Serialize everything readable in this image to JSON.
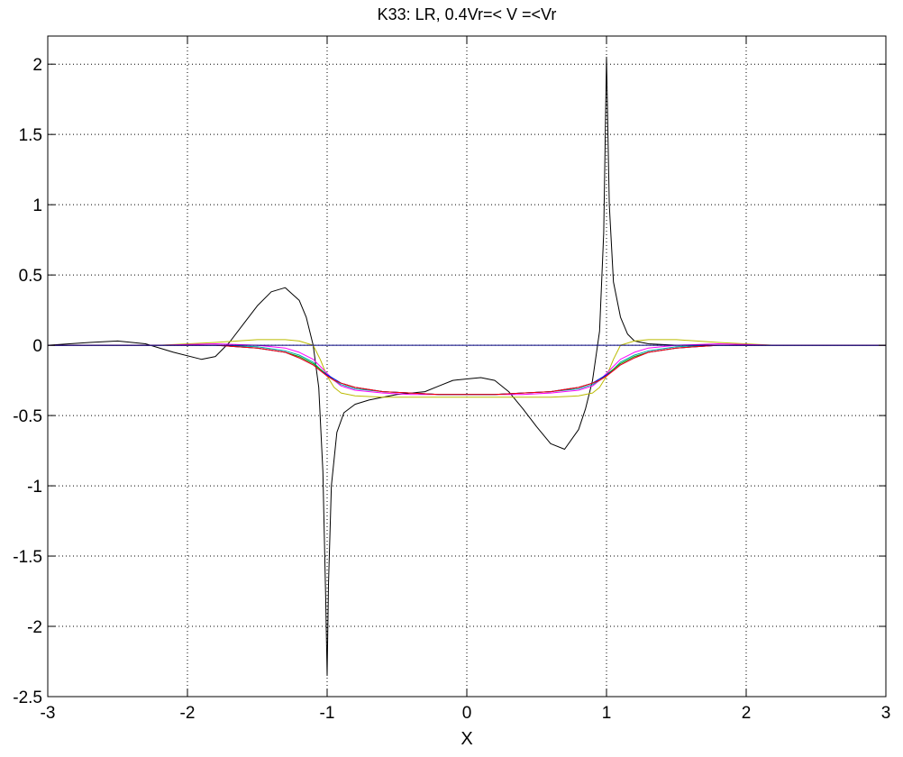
{
  "chart_data": {
    "type": "line",
    "title": "K33: LR, 0.4Vr=< V =<Vr",
    "xlabel": "X",
    "ylabel": "",
    "xlim": [
      -3,
      3
    ],
    "ylim": [
      -2.5,
      2.2
    ],
    "xticks": [
      "-3",
      "-2",
      "-1",
      "0",
      "1",
      "2",
      "3"
    ],
    "yticks": [
      "-2.5",
      "-2",
      "-1.5",
      "-1",
      "-0.5",
      "0",
      "0.5",
      "1",
      "1.5",
      "2"
    ],
    "grid": true,
    "legend": "none",
    "series": [
      {
        "color": "#000000",
        "x": [
          -3,
          -2.7,
          -2.5,
          -2.3,
          -2.1,
          -1.9,
          -1.8,
          -1.7,
          -1.6,
          -1.5,
          -1.4,
          -1.3,
          -1.2,
          -1.15,
          -1.1,
          -1.06,
          -1.03,
          -1.01,
          -1.0,
          -0.99,
          -0.97,
          -0.93,
          -0.88,
          -0.8,
          -0.7,
          -0.6,
          -0.5,
          -0.4,
          -0.3,
          -0.2,
          -0.1,
          0,
          0.1,
          0.2,
          0.3,
          0.4,
          0.5,
          0.6,
          0.7,
          0.8,
          0.85,
          0.9,
          0.95,
          0.98,
          1.0,
          1.02,
          1.05,
          1.1,
          1.15,
          1.2,
          1.3,
          1.5,
          2,
          2.5,
          3
        ],
        "y": [
          0,
          0.02,
          0.03,
          0.01,
          -0.05,
          -0.1,
          -0.08,
          0.02,
          0.15,
          0.28,
          0.38,
          0.41,
          0.32,
          0.2,
          0.0,
          -0.3,
          -0.9,
          -1.8,
          -2.35,
          -1.7,
          -1.0,
          -0.62,
          -0.48,
          -0.42,
          -0.39,
          -0.37,
          -0.35,
          -0.34,
          -0.33,
          -0.29,
          -0.25,
          -0.24,
          -0.23,
          -0.25,
          -0.33,
          -0.45,
          -0.58,
          -0.7,
          -0.74,
          -0.6,
          -0.45,
          -0.25,
          0.1,
          0.8,
          2.05,
          1.0,
          0.45,
          0.2,
          0.08,
          0.03,
          0.01,
          0.0,
          0.0,
          0.0,
          0.0
        ]
      },
      {
        "color": "#bbbb00",
        "x": [
          -3,
          -2.2,
          -1.8,
          -1.5,
          -1.3,
          -1.2,
          -1.1,
          -1.05,
          -1.0,
          -0.95,
          -0.9,
          -0.8,
          -0.6,
          -0.4,
          -0.2,
          0,
          0.2,
          0.4,
          0.6,
          0.8,
          0.9,
          0.95,
          1.0,
          1.05,
          1.1,
          1.2,
          1.3,
          1.5,
          1.8,
          2.2,
          3
        ],
        "y": [
          0,
          0.0,
          0.02,
          0.04,
          0.04,
          0.03,
          0.0,
          -0.1,
          -0.22,
          -0.3,
          -0.34,
          -0.36,
          -0.37,
          -0.37,
          -0.37,
          -0.37,
          -0.37,
          -0.37,
          -0.37,
          -0.36,
          -0.34,
          -0.3,
          -0.22,
          -0.1,
          0.0,
          0.03,
          0.04,
          0.04,
          0.02,
          0.0,
          0
        ]
      },
      {
        "color": "#ff00ff",
        "x": [
          -3,
          -2.2,
          -1.8,
          -1.5,
          -1.3,
          -1.2,
          -1.1,
          -1.05,
          -1.0,
          -0.95,
          -0.9,
          -0.8,
          -0.6,
          -0.4,
          -0.2,
          0,
          0.2,
          0.4,
          0.6,
          0.8,
          0.9,
          0.95,
          1.0,
          1.05,
          1.1,
          1.2,
          1.3,
          1.5,
          1.8,
          2.2,
          3
        ],
        "y": [
          0,
          0.0,
          0.01,
          0.0,
          -0.02,
          -0.05,
          -0.1,
          -0.15,
          -0.2,
          -0.25,
          -0.29,
          -0.32,
          -0.34,
          -0.35,
          -0.35,
          -0.35,
          -0.35,
          -0.35,
          -0.34,
          -0.32,
          -0.29,
          -0.25,
          -0.2,
          -0.15,
          -0.1,
          -0.05,
          -0.02,
          0.0,
          0.01,
          0.0,
          0
        ]
      },
      {
        "color": "#00aaaa",
        "x": [
          -3,
          -2.2,
          -1.8,
          -1.5,
          -1.3,
          -1.2,
          -1.1,
          -1.05,
          -1.0,
          -0.95,
          -0.9,
          -0.8,
          -0.6,
          -0.4,
          -0.2,
          0,
          0.2,
          0.4,
          0.6,
          0.8,
          0.9,
          0.95,
          1.0,
          1.05,
          1.1,
          1.2,
          1.3,
          1.5,
          1.8,
          2.2,
          3
        ],
        "y": [
          0,
          0.0,
          0.0,
          -0.01,
          -0.04,
          -0.07,
          -0.12,
          -0.17,
          -0.21,
          -0.25,
          -0.28,
          -0.31,
          -0.33,
          -0.34,
          -0.35,
          -0.35,
          -0.35,
          -0.34,
          -0.33,
          -0.31,
          -0.28,
          -0.25,
          -0.21,
          -0.17,
          -0.12,
          -0.07,
          -0.04,
          -0.01,
          0.0,
          0.0,
          0
        ]
      },
      {
        "color": "#00aa00",
        "x": [
          -3,
          -2.2,
          -1.8,
          -1.5,
          -1.3,
          -1.2,
          -1.1,
          -1.05,
          -1.0,
          -0.95,
          -0.9,
          -0.8,
          -0.6,
          -0.4,
          -0.2,
          0,
          0.2,
          0.4,
          0.6,
          0.8,
          0.9,
          0.95,
          1.0,
          1.05,
          1.1,
          1.2,
          1.3,
          1.5,
          1.8,
          2.2,
          3
        ],
        "y": [
          0,
          0.0,
          0.0,
          -0.02,
          -0.05,
          -0.08,
          -0.13,
          -0.17,
          -0.21,
          -0.24,
          -0.27,
          -0.3,
          -0.33,
          -0.34,
          -0.35,
          -0.35,
          -0.35,
          -0.34,
          -0.33,
          -0.3,
          -0.27,
          -0.24,
          -0.21,
          -0.17,
          -0.13,
          -0.08,
          -0.05,
          -0.02,
          0.0,
          0.0,
          0
        ]
      },
      {
        "color": "#0000ff",
        "x": [
          -3,
          -2.2,
          -1.8,
          -1.5,
          -1.3,
          -1.2,
          -1.1,
          -1.05,
          -1.0,
          -0.95,
          -0.9,
          -0.8,
          -0.6,
          -0.4,
          -0.2,
          0,
          0.2,
          0.4,
          0.6,
          0.8,
          0.9,
          0.95,
          1.0,
          1.05,
          1.1,
          1.2,
          1.3,
          1.5,
          1.8,
          2.2,
          3
        ],
        "y": [
          0,
          0.0,
          0.0,
          -0.02,
          -0.05,
          -0.09,
          -0.14,
          -0.18,
          -0.21,
          -0.24,
          -0.27,
          -0.3,
          -0.33,
          -0.34,
          -0.35,
          -0.35,
          -0.35,
          -0.34,
          -0.33,
          -0.3,
          -0.27,
          -0.24,
          -0.21,
          -0.18,
          -0.14,
          -0.09,
          -0.05,
          -0.02,
          0.0,
          0.0,
          0
        ]
      },
      {
        "color": "#ff0000",
        "x": [
          -3,
          -2.2,
          -1.8,
          -1.5,
          -1.3,
          -1.2,
          -1.1,
          -1.05,
          -1.0,
          -0.95,
          -0.9,
          -0.8,
          -0.6,
          -0.4,
          -0.2,
          0,
          0.2,
          0.4,
          0.6,
          0.8,
          0.9,
          0.95,
          1.0,
          1.05,
          1.1,
          1.2,
          1.3,
          1.5,
          1.8,
          2.2,
          3
        ],
        "y": [
          0,
          0.0,
          0.0,
          -0.02,
          -0.05,
          -0.09,
          -0.14,
          -0.18,
          -0.22,
          -0.25,
          -0.27,
          -0.3,
          -0.33,
          -0.34,
          -0.35,
          -0.35,
          -0.35,
          -0.34,
          -0.33,
          -0.3,
          -0.27,
          -0.25,
          -0.22,
          -0.18,
          -0.14,
          -0.09,
          -0.05,
          -0.02,
          0.0,
          0.0,
          0
        ]
      },
      {
        "color": "#000080",
        "x": [
          -3,
          3
        ],
        "y": [
          0,
          0
        ]
      }
    ]
  }
}
